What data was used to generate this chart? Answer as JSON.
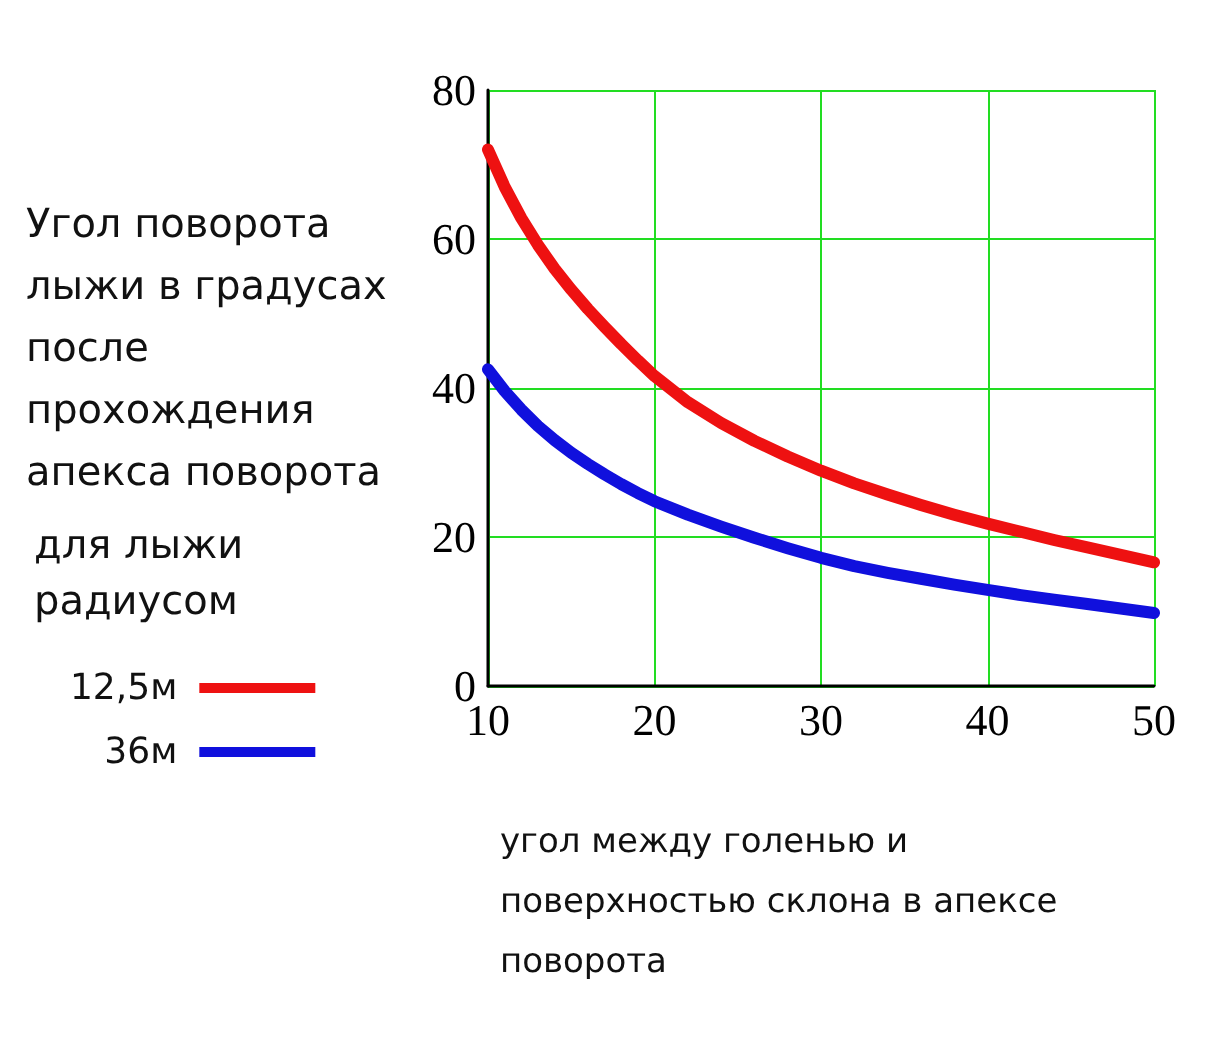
{
  "chart_data": {
    "type": "line",
    "ylabel": "Угол поворота лыжи в градусах после прохождения апекса поворота",
    "legend_title": "для лыжи радиусом",
    "xlabel": "угол между голенью и поверхностью склона в апексе поворота",
    "x": [
      10,
      11,
      12,
      13,
      14,
      15,
      16,
      17,
      18,
      19,
      20,
      22,
      24,
      26,
      28,
      30,
      32,
      34,
      36,
      38,
      40,
      42,
      44,
      46,
      48,
      50
    ],
    "series": [
      {
        "name": "12,5м",
        "color": "#ee1111",
        "values": [
          72,
          67,
          62.8,
          59.2,
          56,
          53.2,
          50.6,
          48.2,
          45.9,
          43.7,
          41.6,
          38.1,
          35.3,
          32.9,
          30.8,
          28.9,
          27.2,
          25.7,
          24.3,
          23,
          21.8,
          20.7,
          19.6,
          18.6,
          17.6,
          16.6
        ]
      },
      {
        "name": "36м",
        "color": "#1010dd",
        "values": [
          42.5,
          39.6,
          37.1,
          34.9,
          33,
          31.3,
          29.8,
          28.4,
          27.1,
          25.9,
          24.8,
          23,
          21.4,
          19.9,
          18.5,
          17.2,
          16.1,
          15.2,
          14.4,
          13.6,
          12.9,
          12.2,
          11.6,
          11,
          10.4,
          9.8
        ]
      }
    ],
    "xlim": [
      10,
      50
    ],
    "xticks": [
      10,
      20,
      30,
      40,
      50
    ],
    "ylim": [
      0,
      80
    ],
    "yticks": [
      0,
      20,
      40,
      60,
      80
    ],
    "grid": true,
    "legend": "left",
    "marker": "none",
    "line_style": "solid"
  }
}
